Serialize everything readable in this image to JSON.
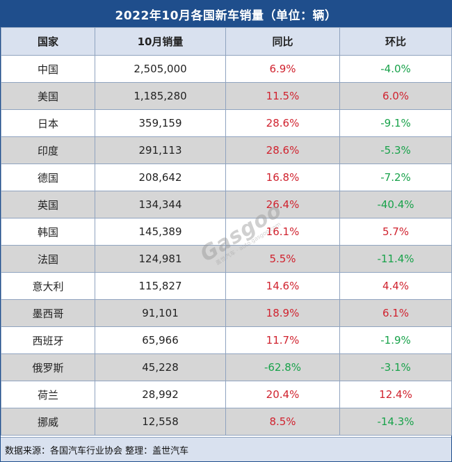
{
  "title": "2022年10月各国新车销量（单位：辆）",
  "table": {
    "headers": [
      "国家",
      "10月销量",
      "同比",
      "环比"
    ],
    "rows": [
      {
        "country": "中国",
        "sales": "2,505,000",
        "yoy": "6.9%",
        "mom": "-4.0%"
      },
      {
        "country": "美国",
        "sales": "1,185,280",
        "yoy": "11.5%",
        "mom": "6.0%"
      },
      {
        "country": "日本",
        "sales": "359,159",
        "yoy": "28.6%",
        "mom": "-9.1%"
      },
      {
        "country": "印度",
        "sales": "291,113",
        "yoy": "28.6%",
        "mom": "-5.3%"
      },
      {
        "country": "德国",
        "sales": "208,642",
        "yoy": "16.8%",
        "mom": "-7.2%"
      },
      {
        "country": "英国",
        "sales": "134,344",
        "yoy": "26.4%",
        "mom": "-40.4%"
      },
      {
        "country": "韩国",
        "sales": "145,389",
        "yoy": "16.1%",
        "mom": "5.7%"
      },
      {
        "country": "法国",
        "sales": "124,981",
        "yoy": "5.5%",
        "mom": "-11.4%"
      },
      {
        "country": "意大利",
        "sales": "115,827",
        "yoy": "14.6%",
        "mom": "4.4%"
      },
      {
        "country": "墨西哥",
        "sales": "91,101",
        "yoy": "18.9%",
        "mom": "6.1%"
      },
      {
        "country": "西班牙",
        "sales": "65,966",
        "yoy": "11.7%",
        "mom": "-1.9%"
      },
      {
        "country": "俄罗斯",
        "sales": "45,228",
        "yoy": "-62.8%",
        "mom": "-3.1%"
      },
      {
        "country": "荷兰",
        "sales": "28,992",
        "yoy": "20.4%",
        "mom": "12.4%"
      },
      {
        "country": "挪威",
        "sales": "12,558",
        "yoy": "8.5%",
        "mom": "-14.3%"
      }
    ]
  },
  "footer": "数据来源：各国汽车行业协会 整理：盖世汽车",
  "watermark": {
    "main": "Gasgoo",
    "cn": "盖世汽车",
    "url": "auto.gasgoo.com"
  },
  "colors": {
    "header_bar": "#1f4e8c",
    "column_header_bg": "#d9e1ef",
    "row_alt_bg": "#d6d6d6",
    "positive": "#d0222e",
    "negative": "#18a24a"
  }
}
